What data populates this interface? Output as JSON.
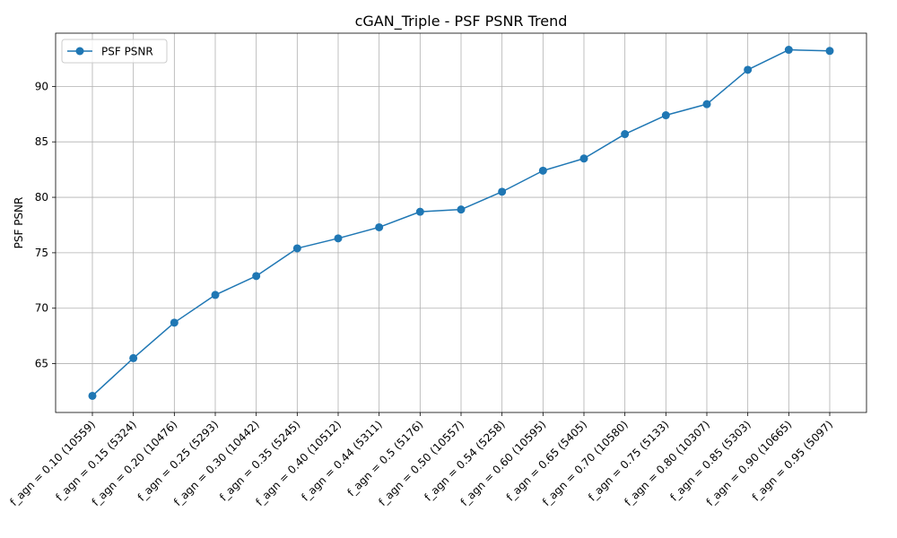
{
  "chart_data": {
    "type": "line",
    "title": "cGAN_Triple - PSF PSNR Trend",
    "xlabel": "",
    "ylabel": "PSF PSNR",
    "categories": [
      "f_agn = 0.10 (10559)",
      "f_agn = 0.15 (5324)",
      "f_agn = 0.20 (10476)",
      "f_agn = 0.25 (5293)",
      "f_agn = 0.30 (10442)",
      "f_agn = 0.35 (5245)",
      "f_agn = 0.40 (10512)",
      "f_agn = 0.44 (5311)",
      "f_agn = 0.5 (5176)",
      "f_agn = 0.50 (10557)",
      "f_agn = 0.54 (5258)",
      "f_agn = 0.60 (10595)",
      "f_agn = 0.65 (5405)",
      "f_agn = 0.70 (10580)",
      "f_agn = 0.75 (5133)",
      "f_agn = 0.80 (10307)",
      "f_agn = 0.85 (5303)",
      "f_agn = 0.90 (10665)",
      "f_agn = 0.95 (5097)"
    ],
    "series": [
      {
        "name": "PSF PSNR",
        "color": "#1f77b4",
        "marker": "circle",
        "values": [
          62.1,
          65.5,
          68.7,
          71.2,
          72.9,
          75.4,
          76.3,
          77.3,
          78.7,
          78.9,
          80.5,
          82.4,
          83.5,
          85.7,
          87.4,
          88.4,
          91.5,
          93.3,
          93.2
        ]
      }
    ],
    "ylim": [
      60.6,
      94.8
    ],
    "yticks": [
      65,
      70,
      75,
      80,
      85,
      90
    ],
    "grid": true,
    "legend_position": "top-left",
    "x_tick_rotation": 45
  }
}
